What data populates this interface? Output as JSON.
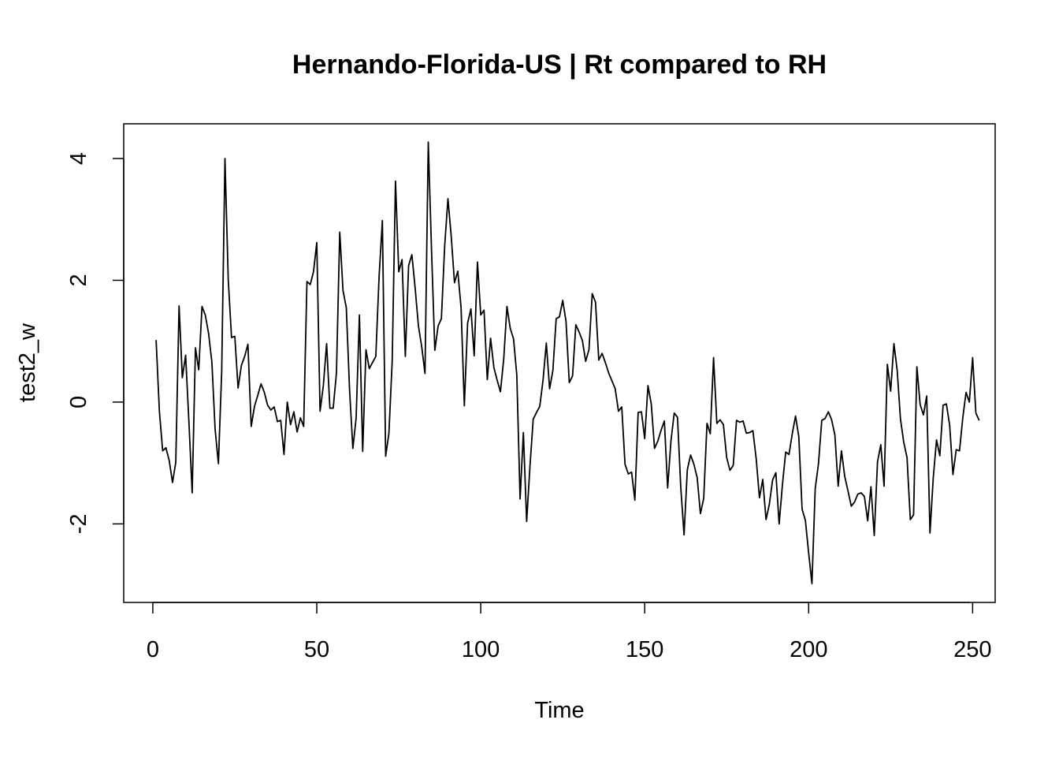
{
  "chart_data": {
    "type": "line",
    "title": "Hernando-Florida-US | Rt compared to RH",
    "xlabel": "Time",
    "ylabel": "test2_w",
    "xlim": [
      -8.88,
      256.88
    ],
    "ylim": [
      -3.29,
      4.57
    ],
    "x_ticks": [
      0,
      50,
      100,
      150,
      200,
      250
    ],
    "y_ticks": [
      -2,
      0,
      2,
      4
    ],
    "x_tick_labels": [
      "0",
      "50",
      "100",
      "150",
      "200",
      "250"
    ],
    "y_tick_labels": [
      "-2",
      "0",
      "2",
      "4"
    ],
    "grid": false,
    "series": [
      {
        "x_start": 1,
        "x_step": 1,
        "values": [
          1.02,
          -0.15,
          -0.8,
          -0.75,
          -0.96,
          -1.32,
          -0.99,
          1.58,
          0.4,
          0.77,
          -0.32,
          -1.49,
          0.89,
          0.53,
          1.57,
          1.43,
          1.13,
          0.66,
          -0.45,
          -1.01,
          0.5,
          4.0,
          2.01,
          1.06,
          1.08,
          0.23,
          0.6,
          0.75,
          0.95,
          -0.4,
          -0.07,
          0.11,
          0.3,
          0.16,
          -0.05,
          -0.13,
          -0.08,
          -0.32,
          -0.3,
          -0.86,
          0.0,
          -0.37,
          -0.16,
          -0.49,
          -0.26,
          -0.4,
          1.98,
          1.93,
          2.14,
          2.62,
          -0.15,
          0.27,
          0.96,
          -0.1,
          -0.1,
          0.48,
          2.79,
          1.83,
          1.55,
          0.2,
          -0.76,
          -0.26,
          1.43,
          -0.81,
          0.86,
          0.55,
          0.65,
          0.75,
          2.06,
          2.98,
          -0.89,
          -0.51,
          0.68,
          3.63,
          2.14,
          2.34,
          0.75,
          2.24,
          2.42,
          1.87,
          1.25,
          0.91,
          0.47,
          4.27,
          2.48,
          0.85,
          1.25,
          1.37,
          2.56,
          3.34,
          2.72,
          1.96,
          2.15,
          1.55,
          -0.06,
          1.3,
          1.53,
          0.76,
          2.3,
          1.43,
          1.51,
          0.37,
          1.05,
          0.57,
          0.36,
          0.17,
          0.7,
          1.57,
          1.21,
          1.04,
          0.44,
          -1.59,
          -0.5,
          -1.96,
          -1.06,
          -0.28,
          -0.17,
          -0.07,
          0.36,
          0.97,
          0.22,
          0.52,
          1.37,
          1.4,
          1.67,
          1.33,
          0.32,
          0.43,
          1.27,
          1.15,
          1.01,
          0.67,
          0.86,
          1.78,
          1.64,
          0.69,
          0.8,
          0.65,
          0.48,
          0.35,
          0.22,
          -0.15,
          -0.08,
          -1.02,
          -1.18,
          -1.15,
          -1.61,
          -0.17,
          -0.16,
          -0.6,
          0.27,
          -0.03,
          -0.76,
          -0.64,
          -0.46,
          -0.31,
          -1.41,
          -0.64,
          -0.18,
          -0.25,
          -1.4,
          -2.18,
          -1.11,
          -0.87,
          -1.02,
          -1.24,
          -1.83,
          -1.58,
          -0.35,
          -0.52,
          0.73,
          -0.35,
          -0.29,
          -0.37,
          -0.91,
          -1.12,
          -1.04,
          -0.3,
          -0.33,
          -0.31,
          -0.51,
          -0.5,
          -0.47,
          -0.93,
          -1.57,
          -1.27,
          -1.93,
          -1.68,
          -1.28,
          -1.16,
          -2.0,
          -1.36,
          -0.82,
          -0.86,
          -0.52,
          -0.23,
          -0.57,
          -1.76,
          -1.94,
          -2.48,
          -2.98,
          -1.42,
          -1.01,
          -0.3,
          -0.27,
          -0.16,
          -0.29,
          -0.54,
          -1.38,
          -0.8,
          -1.22,
          -1.46,
          -1.71,
          -1.64,
          -1.51,
          -1.49,
          -1.55,
          -1.95,
          -1.39,
          -2.19,
          -0.98,
          -0.7,
          -1.38,
          0.62,
          0.18,
          0.96,
          0.52,
          -0.28,
          -0.66,
          -0.91,
          -1.93,
          -1.85,
          0.58,
          -0.04,
          -0.21,
          0.1,
          -2.15,
          -1.24,
          -0.62,
          -0.88,
          -0.05,
          -0.03,
          -0.38,
          -1.19,
          -0.78,
          -0.8,
          -0.26,
          0.16,
          0.0,
          0.73,
          -0.18,
          -0.3
        ]
      }
    ]
  }
}
